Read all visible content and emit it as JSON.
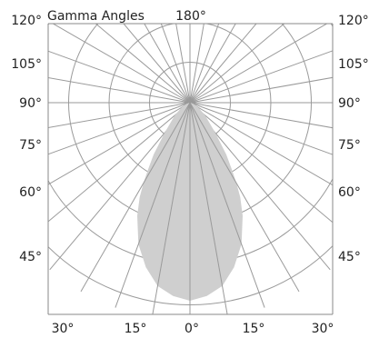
{
  "chart_data": {
    "type": "polar",
    "title": "Gamma Angles",
    "top_center_label": "180°",
    "left_angle_labels": [
      "120°",
      "105°",
      "90°",
      "75°",
      "60°",
      "45°"
    ],
    "right_angle_labels": [
      "120°",
      "105°",
      "90°",
      "75°",
      "60°",
      "45°"
    ],
    "bottom_angle_labels": [
      "30°",
      "15°",
      "0°",
      "15°",
      "30°"
    ],
    "spoke_step_deg": 10,
    "ring_count": 4,
    "grid": true,
    "series": [
      {
        "fill_color": "#cfcfcf",
        "angles_deg": [
          0,
          5,
          10,
          15,
          20,
          25,
          28,
          30,
          32,
          35,
          40,
          50,
          60,
          70,
          80,
          90
        ],
        "relative_intensity": [
          1.0,
          0.98,
          0.94,
          0.86,
          0.76,
          0.63,
          0.54,
          0.47,
          0.4,
          0.32,
          0.2,
          0.1,
          0.05,
          0.02,
          0.005,
          0.0
        ]
      }
    ]
  }
}
